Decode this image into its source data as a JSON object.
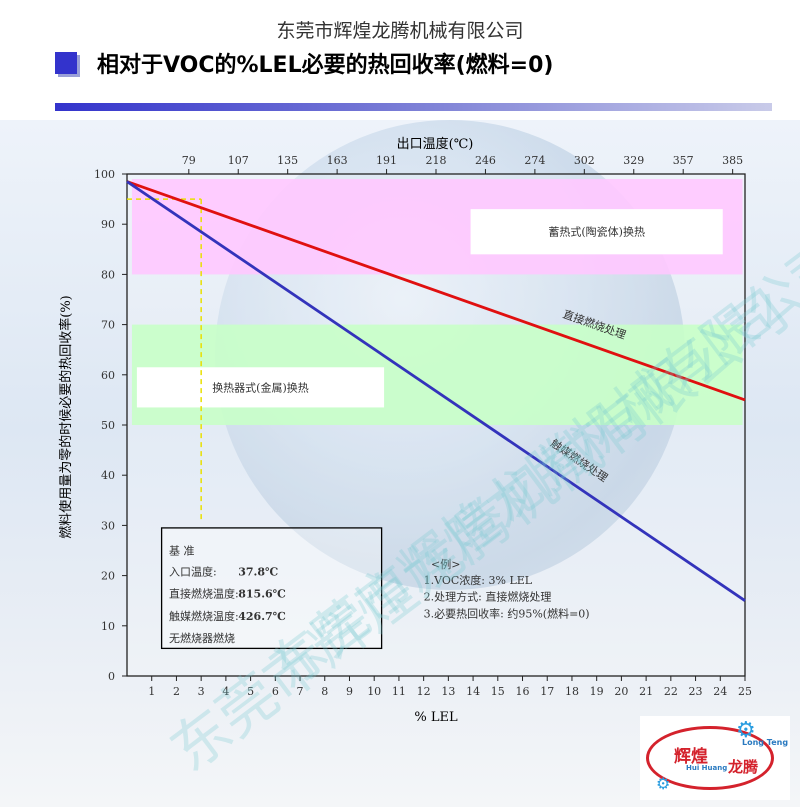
{
  "company": "东莞市辉煌龙腾机械有限公司",
  "title": "相对于VOC的%LEL必要的热回收率(燃料=0)",
  "watermark": "东莞市辉煌龙腾机械有限公司",
  "logo": {
    "cn1": "辉煌",
    "cn2": "龙腾",
    "en1": "Long Teng",
    "en2": "Hui Huang"
  },
  "colors": {
    "accent": "#3333cc",
    "direct_line": "#e01010",
    "catalyst_line": "#3333bb",
    "band_pink": "#ffc8ff",
    "band_green": "#c8ffc8"
  },
  "chart_data": {
    "type": "line",
    "xlabel": "% LEL",
    "ylabel": "燃料使用量为零的时候必要的热回收率(%)",
    "top_axis_label": "出口温度(℃)",
    "xlim": [
      0,
      25
    ],
    "ylim": [
      0,
      100
    ],
    "x_ticks": [
      "1",
      "2",
      "3",
      "4",
      "5",
      "6",
      "7",
      "8",
      "9",
      "10",
      "11",
      "12",
      "13",
      "14",
      "15",
      "16",
      "17",
      "18",
      "19",
      "20",
      "21",
      "22",
      "23",
      "24",
      "25"
    ],
    "y_ticks": [
      "0",
      "10",
      "20",
      "30",
      "40",
      "50",
      "60",
      "70",
      "80",
      "90",
      "100"
    ],
    "top_ticks": [
      {
        "x": 2.5,
        "label": "79"
      },
      {
        "x": 4.5,
        "label": "107"
      },
      {
        "x": 6.5,
        "label": "135"
      },
      {
        "x": 8.5,
        "label": "163"
      },
      {
        "x": 10.5,
        "label": "191"
      },
      {
        "x": 12.5,
        "label": "218"
      },
      {
        "x": 14.5,
        "label": "246"
      },
      {
        "x": 16.5,
        "label": "274"
      },
      {
        "x": 18.5,
        "label": "302"
      },
      {
        "x": 20.5,
        "label": "329"
      },
      {
        "x": 22.5,
        "label": "357"
      },
      {
        "x": 24.5,
        "label": "385"
      }
    ],
    "bands": [
      {
        "label": "蓄热式(陶瓷体)换热",
        "y0": 80,
        "y1": 99
      },
      {
        "label": "换热器式(金属)换热",
        "y0": 50,
        "y1": 70
      }
    ],
    "series": [
      {
        "name": "直接燃烧处理",
        "x": [
          0,
          25
        ],
        "y": [
          98.5,
          55
        ]
      },
      {
        "name": "触媒燃烧处理",
        "x": [
          0,
          25
        ],
        "y": [
          98.5,
          15
        ]
      }
    ],
    "example_point": {
      "x": 3,
      "y": 95
    },
    "basis_box": {
      "heading": "基   准",
      "lines": [
        {
          "label": "入口温度:",
          "value": "37.8℃"
        },
        {
          "label": "直接燃烧温度:",
          "value": "815.6℃"
        },
        {
          "label": "触媒燃烧温度:",
          "value": "426.7℃"
        },
        {
          "label": "无燃烧器燃烧",
          "value": ""
        }
      ]
    },
    "example_note": {
      "heading": "<例>",
      "lines": [
        "1.VOC浓度: 3% LEL",
        "2.处理方式: 直接燃烧处理",
        "3.必要热回收率: 约95%(燃料=0)"
      ]
    }
  }
}
